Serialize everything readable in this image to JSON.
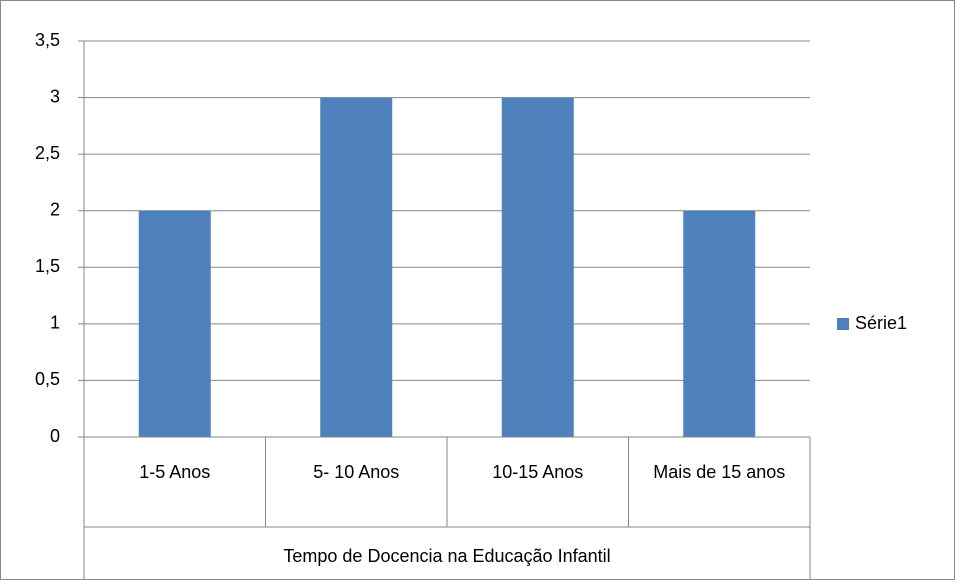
{
  "chart_data": {
    "type": "bar",
    "x_label": "Tempo de Docencia na Educação Infantil",
    "categories": [
      "1-5 Anos",
      "5- 10 Anos",
      "10-15 Anos",
      "Mais de 15 anos"
    ],
    "series": [
      {
        "name": "Série1",
        "color": "#4f81bd",
        "values": [
          2,
          3,
          3,
          2
        ]
      }
    ],
    "ylim": [
      0,
      3.5
    ],
    "yticks": [
      0,
      {
        "value": 0.5,
        "label": "0,5"
      },
      1,
      {
        "value": 1.5,
        "label": "1,5"
      },
      2,
      {
        "value": 2.5,
        "label": "2,5"
      },
      3,
      {
        "value": 3.5,
        "label": "3,5"
      }
    ],
    "grid": true,
    "legend": "right"
  }
}
